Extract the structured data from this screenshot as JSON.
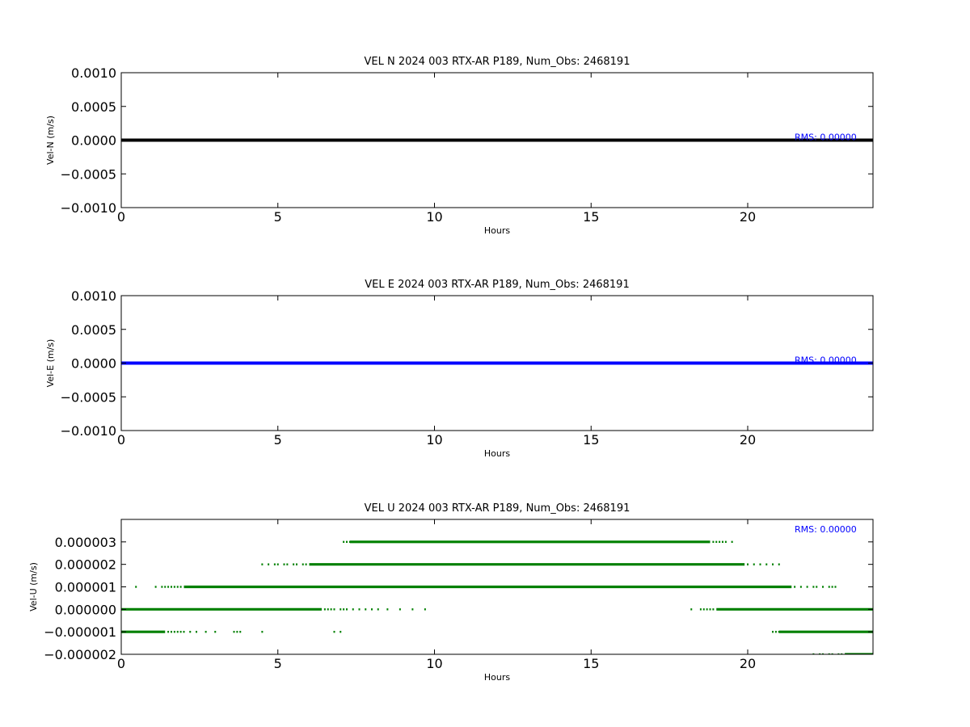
{
  "chart_data": [
    {
      "type": "line",
      "title": "VEL N 2024 003 RTX-AR  P189, Num_Obs: 2468191",
      "xlabel": "Hours",
      "ylabel": "Vel-N (m/s)",
      "xlim": [
        0,
        24
      ],
      "ylim": [
        -0.001,
        0.001
      ],
      "xticks": [
        0,
        5,
        10,
        15,
        20
      ],
      "xtick_labels": [
        "0",
        "5",
        "10",
        "15",
        "20"
      ],
      "yticks": [
        0.001,
        0.0005,
        0,
        -0.0005,
        -0.001
      ],
      "ytick_labels": [
        "0.0010",
        "0.0005",
        "0.0000",
        "−0.0005",
        "−0.0010"
      ],
      "grid": false,
      "annotation": "RMS:  0.00000",
      "annotation_color": "#0000ff",
      "series": [
        {
          "color": "#000000",
          "x": [
            0,
            24
          ],
          "y": [
            0,
            0
          ]
        }
      ]
    },
    {
      "type": "line",
      "title": "VEL E 2024 003 RTX-AR  P189, Num_Obs: 2468191",
      "xlabel": "Hours",
      "ylabel": "Vel-E (m/s)",
      "xlim": [
        0,
        24
      ],
      "ylim": [
        -0.001,
        0.001
      ],
      "xticks": [
        0,
        5,
        10,
        15,
        20
      ],
      "xtick_labels": [
        "0",
        "5",
        "10",
        "15",
        "20"
      ],
      "yticks": [
        0.001,
        0.0005,
        0,
        -0.0005,
        -0.001
      ],
      "ytick_labels": [
        "0.0010",
        "0.0005",
        "0.0000",
        "−0.0005",
        "−0.0010"
      ],
      "grid": false,
      "annotation": "RMS:  0.00000",
      "annotation_color": "#0000ff",
      "series": [
        {
          "color": "#0000ff",
          "x": [
            0,
            24
          ],
          "y": [
            0,
            0
          ]
        }
      ]
    },
    {
      "type": "scatter",
      "title": "VEL U 2024 003 RTX-AR  P189, Num_Obs: 2468191",
      "xlabel": "Hours",
      "ylabel": "Vel-U (m/s)",
      "xlim": [
        0,
        24
      ],
      "ylim": [
        -2e-06,
        4e-06
      ],
      "xticks": [
        0,
        5,
        10,
        15,
        20
      ],
      "xtick_labels": [
        "0",
        "5",
        "10",
        "15",
        "20"
      ],
      "yticks": [
        3e-06,
        2e-06,
        1e-06,
        0,
        -1e-06,
        -2e-06
      ],
      "ytick_labels": [
        "0.000003",
        "0.000002",
        "0.000001",
        "0.000000",
        "−0.000001",
        "−0.000002"
      ],
      "grid": false,
      "annotation": "RMS:  0.00000",
      "annotation_color": "#0000ff",
      "point_color": "#008000",
      "levels": [
        {
          "y": 3e-06,
          "dense": [
            7.3,
            18.8
          ],
          "points": [
            7.1,
            7.2,
            7.3,
            7.4,
            18.9,
            19.0,
            19.1,
            19.2,
            19.3,
            19.5
          ]
        },
        {
          "y": 2e-06,
          "dense": [
            6.0,
            19.9
          ],
          "points": [
            4.5,
            4.7,
            4.9,
            5.0,
            5.2,
            5.3,
            5.5,
            5.6,
            5.8,
            5.9,
            20.0,
            20.2,
            20.4,
            20.6,
            20.8,
            21.0
          ]
        },
        {
          "y": 1e-06,
          "dense": [
            2.0,
            21.4
          ],
          "points": [
            0.47,
            1.1,
            1.3,
            1.4,
            1.5,
            1.6,
            1.7,
            1.8,
            1.9,
            21.5,
            21.7,
            21.9,
            22.1,
            22.2,
            22.4,
            22.6,
            22.7,
            22.8
          ]
        },
        {
          "y": 0,
          "dense": [
            0,
            6.4
          ],
          "points": [
            6.5,
            6.6,
            6.7,
            6.8,
            7.0,
            7.1,
            7.2,
            7.4,
            7.6,
            7.8,
            8.0,
            8.2,
            8.5,
            8.9,
            9.3,
            9.7,
            18.2,
            18.5,
            18.6,
            18.7,
            18.8,
            18.9
          ],
          "dense2": [
            19.0,
            24
          ]
        },
        {
          "y": -1e-06,
          "dense": [
            0,
            1.4
          ],
          "points": [
            1.5,
            1.6,
            1.7,
            1.8,
            1.9,
            2.0,
            2.2,
            2.4,
            2.7,
            3.0,
            3.6,
            3.7,
            3.8,
            4.5,
            6.8,
            7.0,
            20.8,
            20.9,
            21.0
          ],
          "dense2": [
            21.0,
            24
          ]
        },
        {
          "y": -2e-06,
          "dense": [
            23.1,
            24
          ],
          "points": [
            22.1,
            22.3,
            22.4,
            22.6,
            22.7,
            22.9,
            23.0
          ]
        }
      ]
    }
  ]
}
